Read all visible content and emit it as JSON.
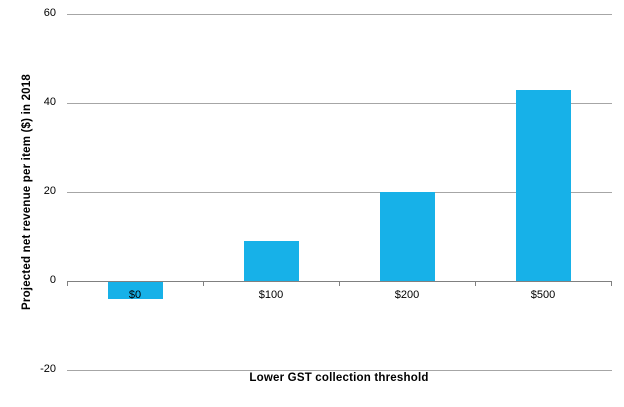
{
  "chart_data": {
    "type": "bar",
    "title": "",
    "categories": [
      "$0",
      "$100",
      "$200",
      "$500"
    ],
    "values": [
      -4,
      9,
      20,
      43
    ],
    "xlabel": "Lower GST collection threshold",
    "ylabel": "Projected net revenue per item ($) in 2018",
    "ylim": [
      -20,
      60
    ],
    "yticks": [
      60,
      40,
      20,
      0,
      -20
    ],
    "grid": true,
    "legend": false,
    "bar_color": "#17B1E8",
    "gridline_color": "#A6A6A6",
    "axis_line_color": "#808080",
    "text_color": "#000000"
  }
}
